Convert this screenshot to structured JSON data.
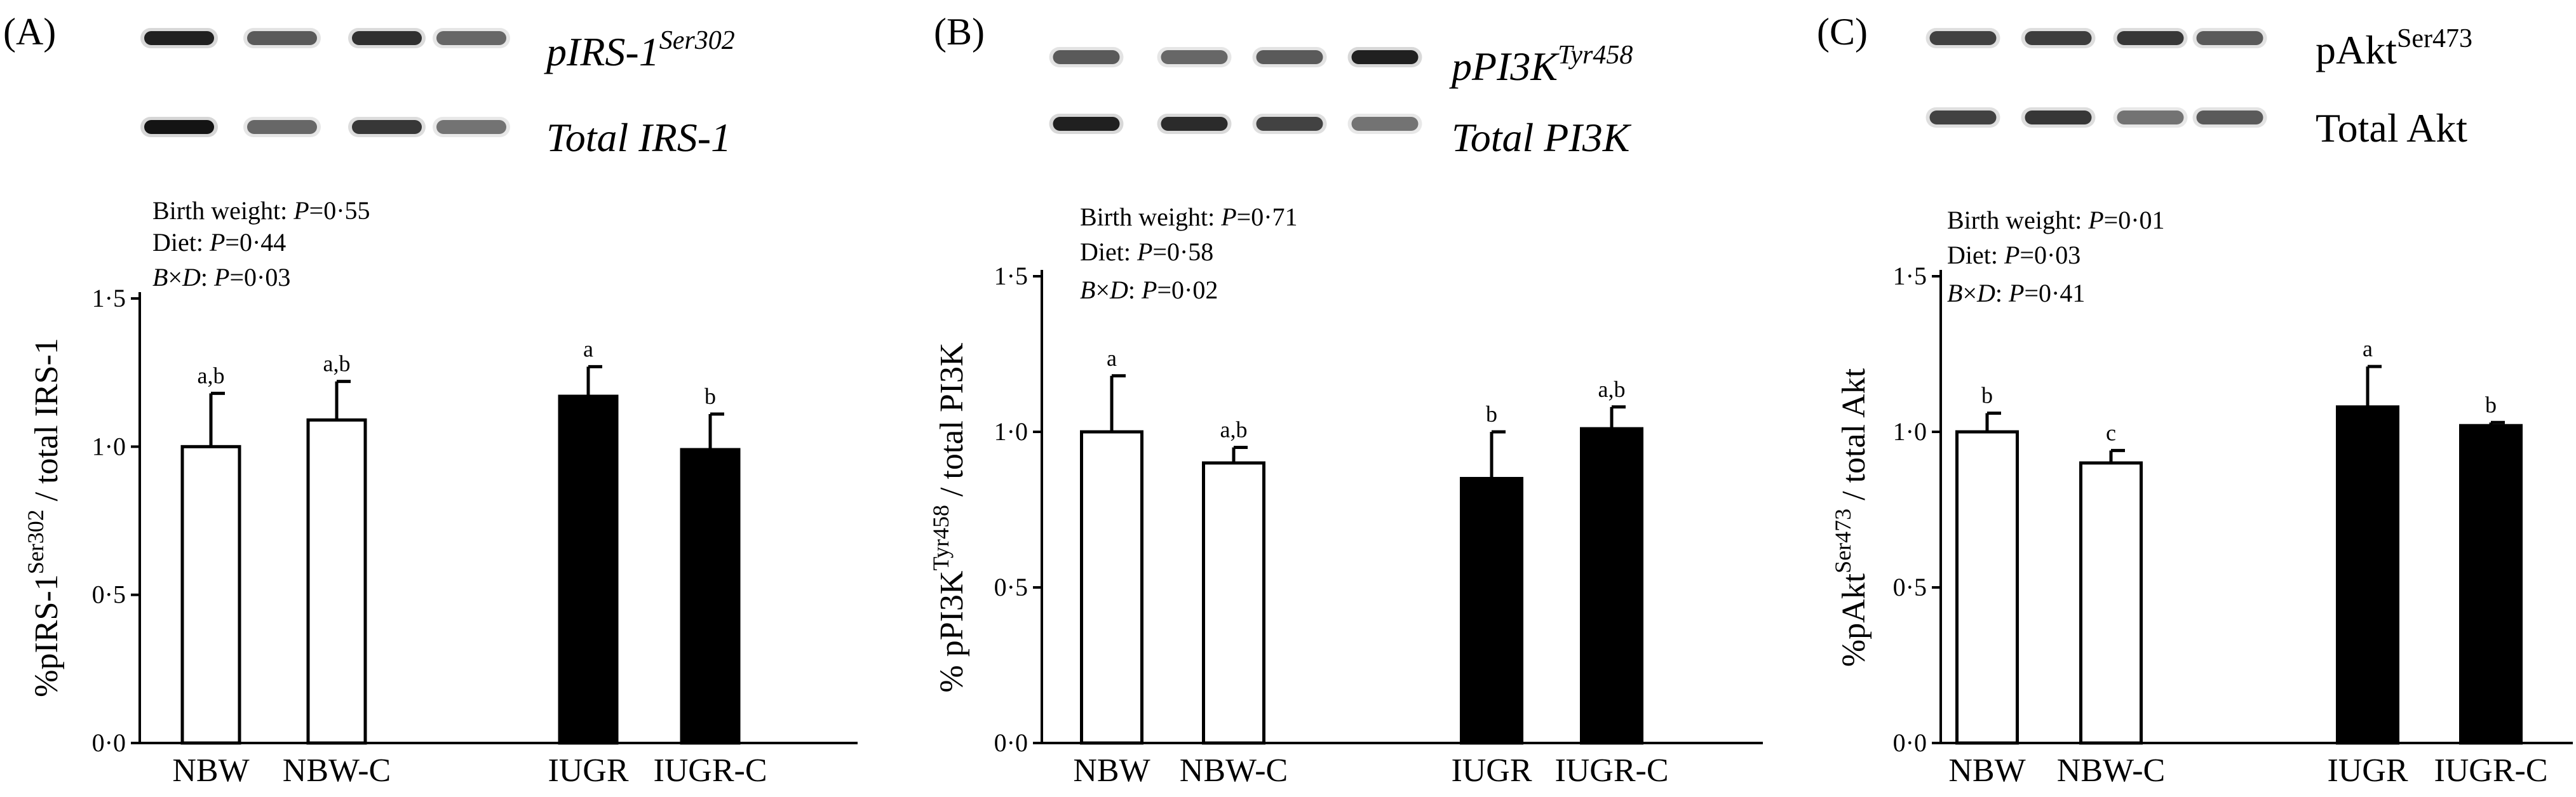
{
  "chart_data": [
    {
      "type": "bar",
      "panel_label": "(A)",
      "blot": {
        "phospho_base": "pIRS-1",
        "phospho_sup": "Ser302",
        "total": "Total IRS-1",
        "italic": true
      },
      "stats": [
        {
          "label": "Birth weight: ",
          "value": "P=0·55"
        },
        {
          "label": "Diet: ",
          "value": "P=0·44"
        },
        {
          "label": "B×D: ",
          "value": "P=0·03"
        }
      ],
      "ylabel": {
        "pre": "%pIRS-1",
        "sup": "Ser302",
        "post": " / total IRS-1"
      },
      "yticks": [
        {
          "value": 0,
          "label": "0·0"
        },
        {
          "value": 0.5,
          "label": "0·5"
        },
        {
          "value": 1.0,
          "label": "1·0"
        },
        {
          "value": 1.5,
          "label": "1·5"
        }
      ],
      "ylim": [
        0,
        1.5
      ],
      "categories": [
        "NBW",
        "NBW-C",
        "IUGR",
        "IUGR-C"
      ],
      "values": [
        1.0,
        1.09,
        1.17,
        0.99
      ],
      "errors": [
        0.18,
        0.13,
        0.1,
        0.12
      ],
      "letters": [
        "a,b",
        "a,b",
        "a",
        "b"
      ],
      "fills": [
        "#ffffff",
        "#ffffff",
        "#000000",
        "#000000"
      ]
    },
    {
      "type": "bar",
      "panel_label": "(B)",
      "blot": {
        "phospho_base": "pPI3K",
        "phospho_sup": "Tyr458",
        "total": "Total PI3K",
        "italic": true
      },
      "stats": [
        {
          "label": "Birth weight: ",
          "value": "P=0·71"
        },
        {
          "label": "Diet: ",
          "value": "P=0·58"
        },
        {
          "label": "B×D: ",
          "value": "P=0·02"
        }
      ],
      "ylabel": {
        "pre": "% pPI3K",
        "sup": "Tyr458",
        "post": " / total PI3K"
      },
      "yticks": [
        {
          "value": 0,
          "label": "0·0"
        },
        {
          "value": 0.5,
          "label": "0·5"
        },
        {
          "value": 1.0,
          "label": "1·0"
        },
        {
          "value": 1.5,
          "label": "1·5"
        }
      ],
      "ylim": [
        0,
        1.5
      ],
      "categories": [
        "NBW",
        "NBW-C",
        "IUGR",
        "IUGR-C"
      ],
      "values": [
        1.0,
        0.9,
        0.85,
        1.01
      ],
      "errors": [
        0.18,
        0.05,
        0.15,
        0.07
      ],
      "letters": [
        "a",
        "a,b",
        "b",
        "a,b"
      ],
      "fills": [
        "#ffffff",
        "#ffffff",
        "#000000",
        "#000000"
      ]
    },
    {
      "type": "bar",
      "panel_label": "(C)",
      "blot": {
        "phospho_base": "pAkt",
        "phospho_sup": "Ser473",
        "total": "Total Akt",
        "italic": false
      },
      "stats": [
        {
          "label": "Birth weight: ",
          "value": "P=0·01"
        },
        {
          "label": "Diet: ",
          "value": "P=0·03"
        },
        {
          "label": "B×D: ",
          "value": "P=0·41"
        }
      ],
      "ylabel": {
        "pre": "%pAkt",
        "sup": "Ser473",
        "post": " / total Akt"
      },
      "yticks": [
        {
          "value": 0,
          "label": "0·0"
        },
        {
          "value": 0.5,
          "label": "0·5"
        },
        {
          "value": 1.0,
          "label": "1·0"
        },
        {
          "value": 1.5,
          "label": "1·5"
        }
      ],
      "ylim": [
        0,
        1.5
      ],
      "categories": [
        "NBW",
        "NBW-C",
        "IUGR",
        "IUGR-C"
      ],
      "values": [
        1.0,
        0.9,
        1.08,
        1.02
      ],
      "errors": [
        0.06,
        0.04,
        0.13,
        0.01
      ],
      "letters": [
        "b",
        "c",
        "a",
        "b"
      ],
      "fills": [
        "#ffffff",
        "#ffffff",
        "#000000",
        "#000000"
      ]
    }
  ]
}
